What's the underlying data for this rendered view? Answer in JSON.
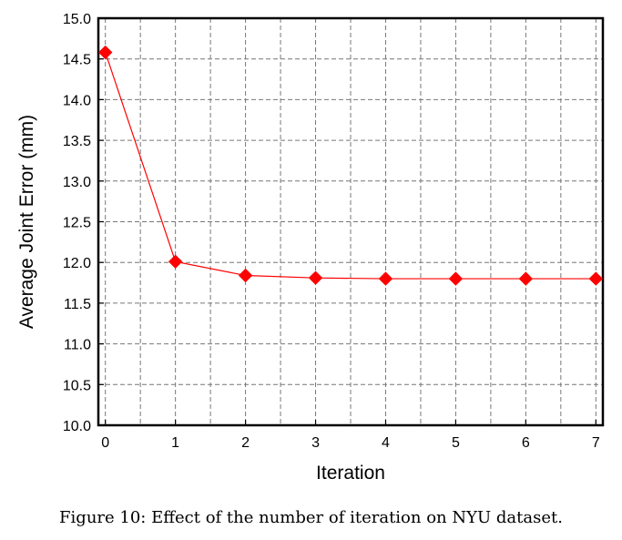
{
  "chart_data": {
    "type": "line",
    "title": "",
    "xlabel": "Iteration",
    "ylabel": "Average Joint Error (mm)",
    "x": [
      0,
      1,
      2,
      3,
      4,
      5,
      6,
      7
    ],
    "series": [
      {
        "values": [
          14.58,
          12.01,
          11.84,
          11.81,
          11.8,
          11.8,
          11.8,
          11.8
        ],
        "color": "#ff0000",
        "marker": "diamond"
      }
    ],
    "xlim": [
      -0.1,
      7.1
    ],
    "ylim": [
      10.0,
      15.0
    ],
    "xticks": [
      "0",
      "1",
      "2",
      "3",
      "4",
      "5",
      "6",
      "7"
    ],
    "yticks": [
      "10.0",
      "10.5",
      "11.0",
      "11.5",
      "12.0",
      "12.5",
      "13.0",
      "13.5",
      "14.0",
      "14.5",
      "15.0"
    ],
    "grid": true,
    "grid_x_minor": [
      0.5,
      1.5,
      2.5,
      3.5,
      4.5,
      5.5,
      6.5
    ]
  },
  "caption": "Figure 10: Effect of the number of iteration on NYU dataset."
}
